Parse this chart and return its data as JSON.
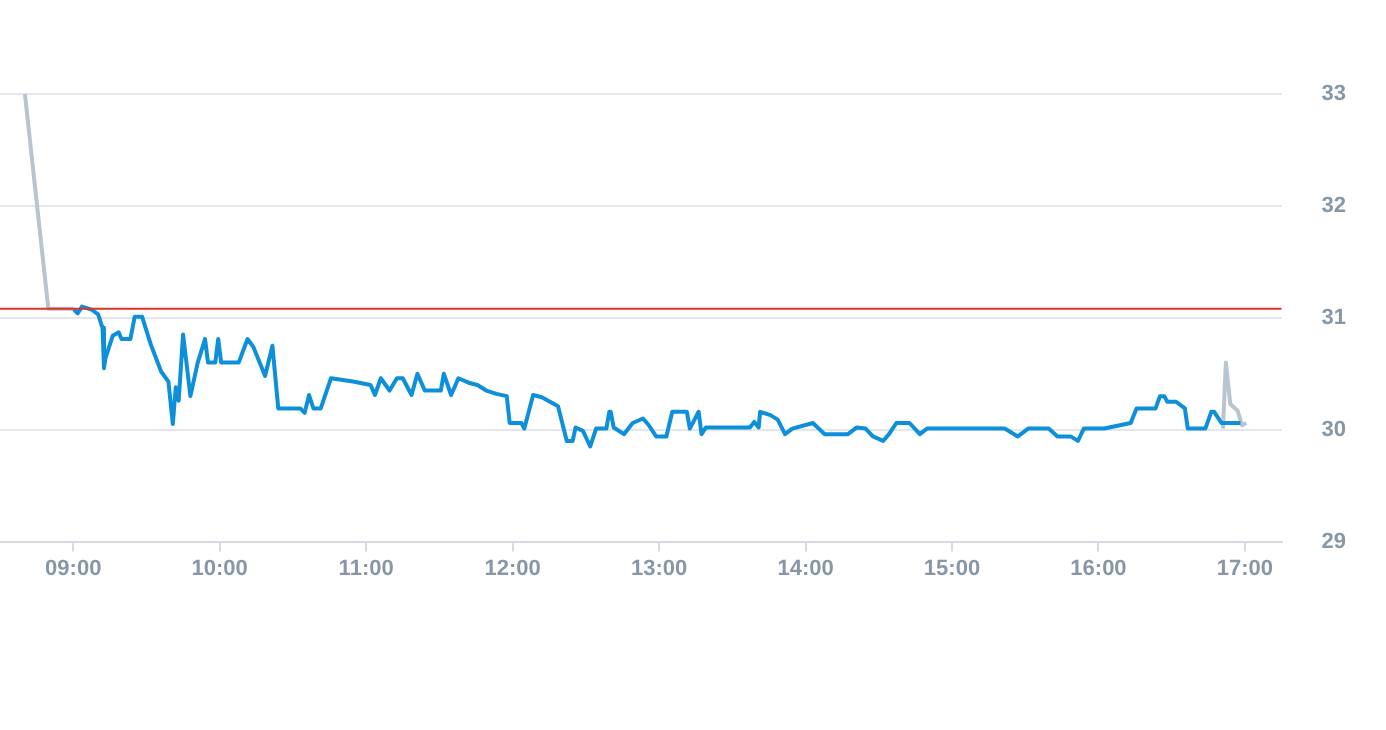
{
  "chart_data": {
    "type": "line",
    "xlim": [
      8.5,
      17.25
    ],
    "xticks": [
      {
        "value": 9,
        "label": "09:00"
      },
      {
        "value": 10,
        "label": "10:00"
      },
      {
        "value": 11,
        "label": "11:00"
      },
      {
        "value": 12,
        "label": "12:00"
      },
      {
        "value": 13,
        "label": "13:00"
      },
      {
        "value": 14,
        "label": "14:00"
      },
      {
        "value": 15,
        "label": "15:00"
      },
      {
        "value": 16,
        "label": "16:00"
      },
      {
        "value": 17,
        "label": "17:00"
      }
    ],
    "ylim": [
      29,
      33
    ],
    "yticks": [
      29,
      30,
      31,
      32,
      33
    ],
    "grid": "y",
    "legend": false,
    "ref_lines": [
      {
        "axis": "y",
        "value": 31.08,
        "color": "#d9342b"
      }
    ],
    "series": [
      {
        "color": "#b8c4ce",
        "x": [
          8.67,
          8.83,
          9.0
        ],
        "values": [
          33.0,
          31.08,
          31.08
        ]
      },
      {
        "color": "#0e8fdb",
        "x": [
          9.0,
          9.03,
          9.06,
          9.13,
          9.17,
          9.2,
          9.21,
          9.22,
          9.27,
          9.31,
          9.33,
          9.39,
          9.42,
          9.47,
          9.53,
          9.6,
          9.65,
          9.68,
          9.7,
          9.72,
          9.75,
          9.8,
          9.85,
          9.9,
          9.92,
          9.97,
          9.99,
          10.01,
          10.13,
          10.19,
          10.23,
          10.31,
          10.36,
          10.4,
          10.55,
          10.58,
          10.61,
          10.64,
          10.69,
          10.76,
          10.91,
          11.03,
          11.06,
          11.1,
          11.16,
          11.21,
          11.25,
          11.31,
          11.35,
          11.4,
          11.51,
          11.53,
          11.58,
          11.63,
          11.7,
          11.76,
          11.82,
          11.89,
          11.96,
          11.98,
          12.06,
          12.08,
          12.14,
          12.2,
          12.31,
          12.37,
          12.41,
          12.43,
          12.48,
          12.53,
          12.57,
          12.64,
          12.66,
          12.67,
          12.69,
          12.76,
          12.82,
          12.89,
          12.93,
          12.98,
          13.05,
          13.09,
          13.19,
          13.21,
          13.27,
          13.29,
          13.32,
          13.62,
          13.65,
          13.68,
          13.69,
          13.76,
          13.81,
          13.86,
          13.91,
          14.05,
          14.13,
          14.29,
          14.35,
          14.41,
          14.46,
          14.53,
          14.57,
          14.62,
          14.71,
          14.78,
          14.83,
          15.36,
          15.45,
          15.52,
          15.66,
          15.72,
          15.81,
          15.86,
          15.9,
          16.04,
          16.22,
          16.26,
          16.39,
          16.42,
          16.45,
          16.47,
          16.53,
          16.59,
          16.61,
          16.73,
          16.77,
          16.79,
          16.84,
          16.97
        ],
        "values": [
          31.08,
          31.04,
          31.1,
          31.07,
          31.03,
          30.91,
          30.55,
          30.64,
          30.84,
          30.87,
          30.81,
          30.81,
          31.01,
          31.01,
          30.76,
          30.52,
          30.43,
          30.05,
          30.38,
          30.26,
          30.85,
          30.3,
          30.6,
          30.81,
          30.6,
          30.6,
          30.81,
          30.6,
          30.6,
          30.81,
          30.74,
          30.48,
          30.75,
          30.19,
          30.19,
          30.15,
          30.31,
          30.19,
          30.19,
          30.46,
          30.43,
          30.4,
          30.31,
          30.46,
          30.35,
          30.46,
          30.46,
          30.31,
          30.5,
          30.35,
          30.35,
          30.5,
          30.31,
          30.46,
          30.42,
          30.4,
          30.35,
          30.32,
          30.3,
          30.06,
          30.06,
          30.01,
          30.31,
          30.29,
          30.21,
          29.9,
          29.9,
          30.02,
          29.99,
          29.85,
          30.01,
          30.01,
          30.16,
          30.16,
          30.02,
          29.96,
          30.06,
          30.1,
          30.04,
          29.94,
          29.94,
          30.16,
          30.16,
          30.01,
          30.16,
          29.96,
          30.02,
          30.02,
          30.07,
          30.02,
          30.16,
          30.13,
          30.09,
          29.96,
          30.01,
          30.06,
          29.96,
          29.96,
          30.02,
          30.01,
          29.94,
          29.9,
          29.96,
          30.06,
          30.06,
          29.96,
          30.01,
          30.01,
          29.94,
          30.01,
          30.01,
          29.94,
          29.94,
          29.9,
          30.01,
          30.01,
          30.06,
          30.19,
          30.19,
          30.3,
          30.3,
          30.25,
          30.25,
          30.19,
          30.01,
          30.01,
          30.16,
          30.16,
          30.06,
          30.06
        ]
      },
      {
        "color": "#b8c4ce",
        "x": [
          16.85,
          16.87,
          16.9,
          16.95,
          16.98,
          17.01
        ],
        "values": [
          30.01,
          30.6,
          30.23,
          30.17,
          30.04,
          30.06
        ]
      }
    ]
  }
}
